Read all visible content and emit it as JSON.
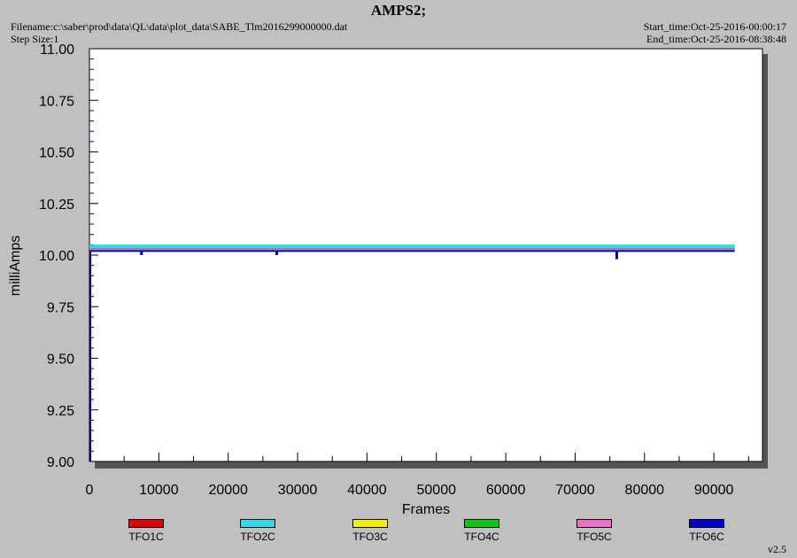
{
  "header": {
    "title": "AMPS2;",
    "filename": "Filename:c:\\saber\\prod\\data\\QL\\data\\plot_data\\SABE_Tlm2016299000000.dat",
    "step_size": "Step Size:1",
    "start_time": "Start_time:Oct-25-2016-00:00:17",
    "end_time": "End_time:Oct-25-2016-08:38:48"
  },
  "version": "v2.5",
  "colors": {
    "TFO1C": "#e00000",
    "TFO2C": "#30d8e8",
    "TFO3C": "#f0f000",
    "TFO4C": "#10c810",
    "TFO5C": "#f070c8",
    "TFO6C": "#0000cc"
  },
  "chart_data": {
    "type": "line",
    "title": "AMPS2;",
    "xlabel": "Frames",
    "ylabel": "milliAmps",
    "xlim": [
      0,
      97000
    ],
    "ylim": [
      9.0,
      11.0
    ],
    "x_ticks": [
      0,
      10000,
      20000,
      30000,
      40000,
      50000,
      60000,
      70000,
      80000,
      90000
    ],
    "y_ticks": [
      "9.00",
      "9.25",
      "9.50",
      "9.75",
      "10.00",
      "10.25",
      "10.50",
      "10.75",
      "11.00"
    ],
    "grid": false,
    "legend_position": "bottom",
    "x_range": [
      0,
      93000
    ],
    "series": [
      {
        "name": "TFO1C",
        "value": 10.035
      },
      {
        "name": "TFO2C",
        "value": 10.04
      },
      {
        "name": "TFO3C",
        "value": 10.03
      },
      {
        "name": "TFO4C",
        "value": 10.03
      },
      {
        "name": "TFO5C",
        "value": 10.025
      },
      {
        "name": "TFO6C",
        "value": 10.02
      }
    ],
    "spikes": [
      {
        "x": 7500,
        "y": 10.0
      },
      {
        "x": 27000,
        "y": 10.0
      },
      {
        "x": 76000,
        "y": 9.98
      }
    ]
  }
}
